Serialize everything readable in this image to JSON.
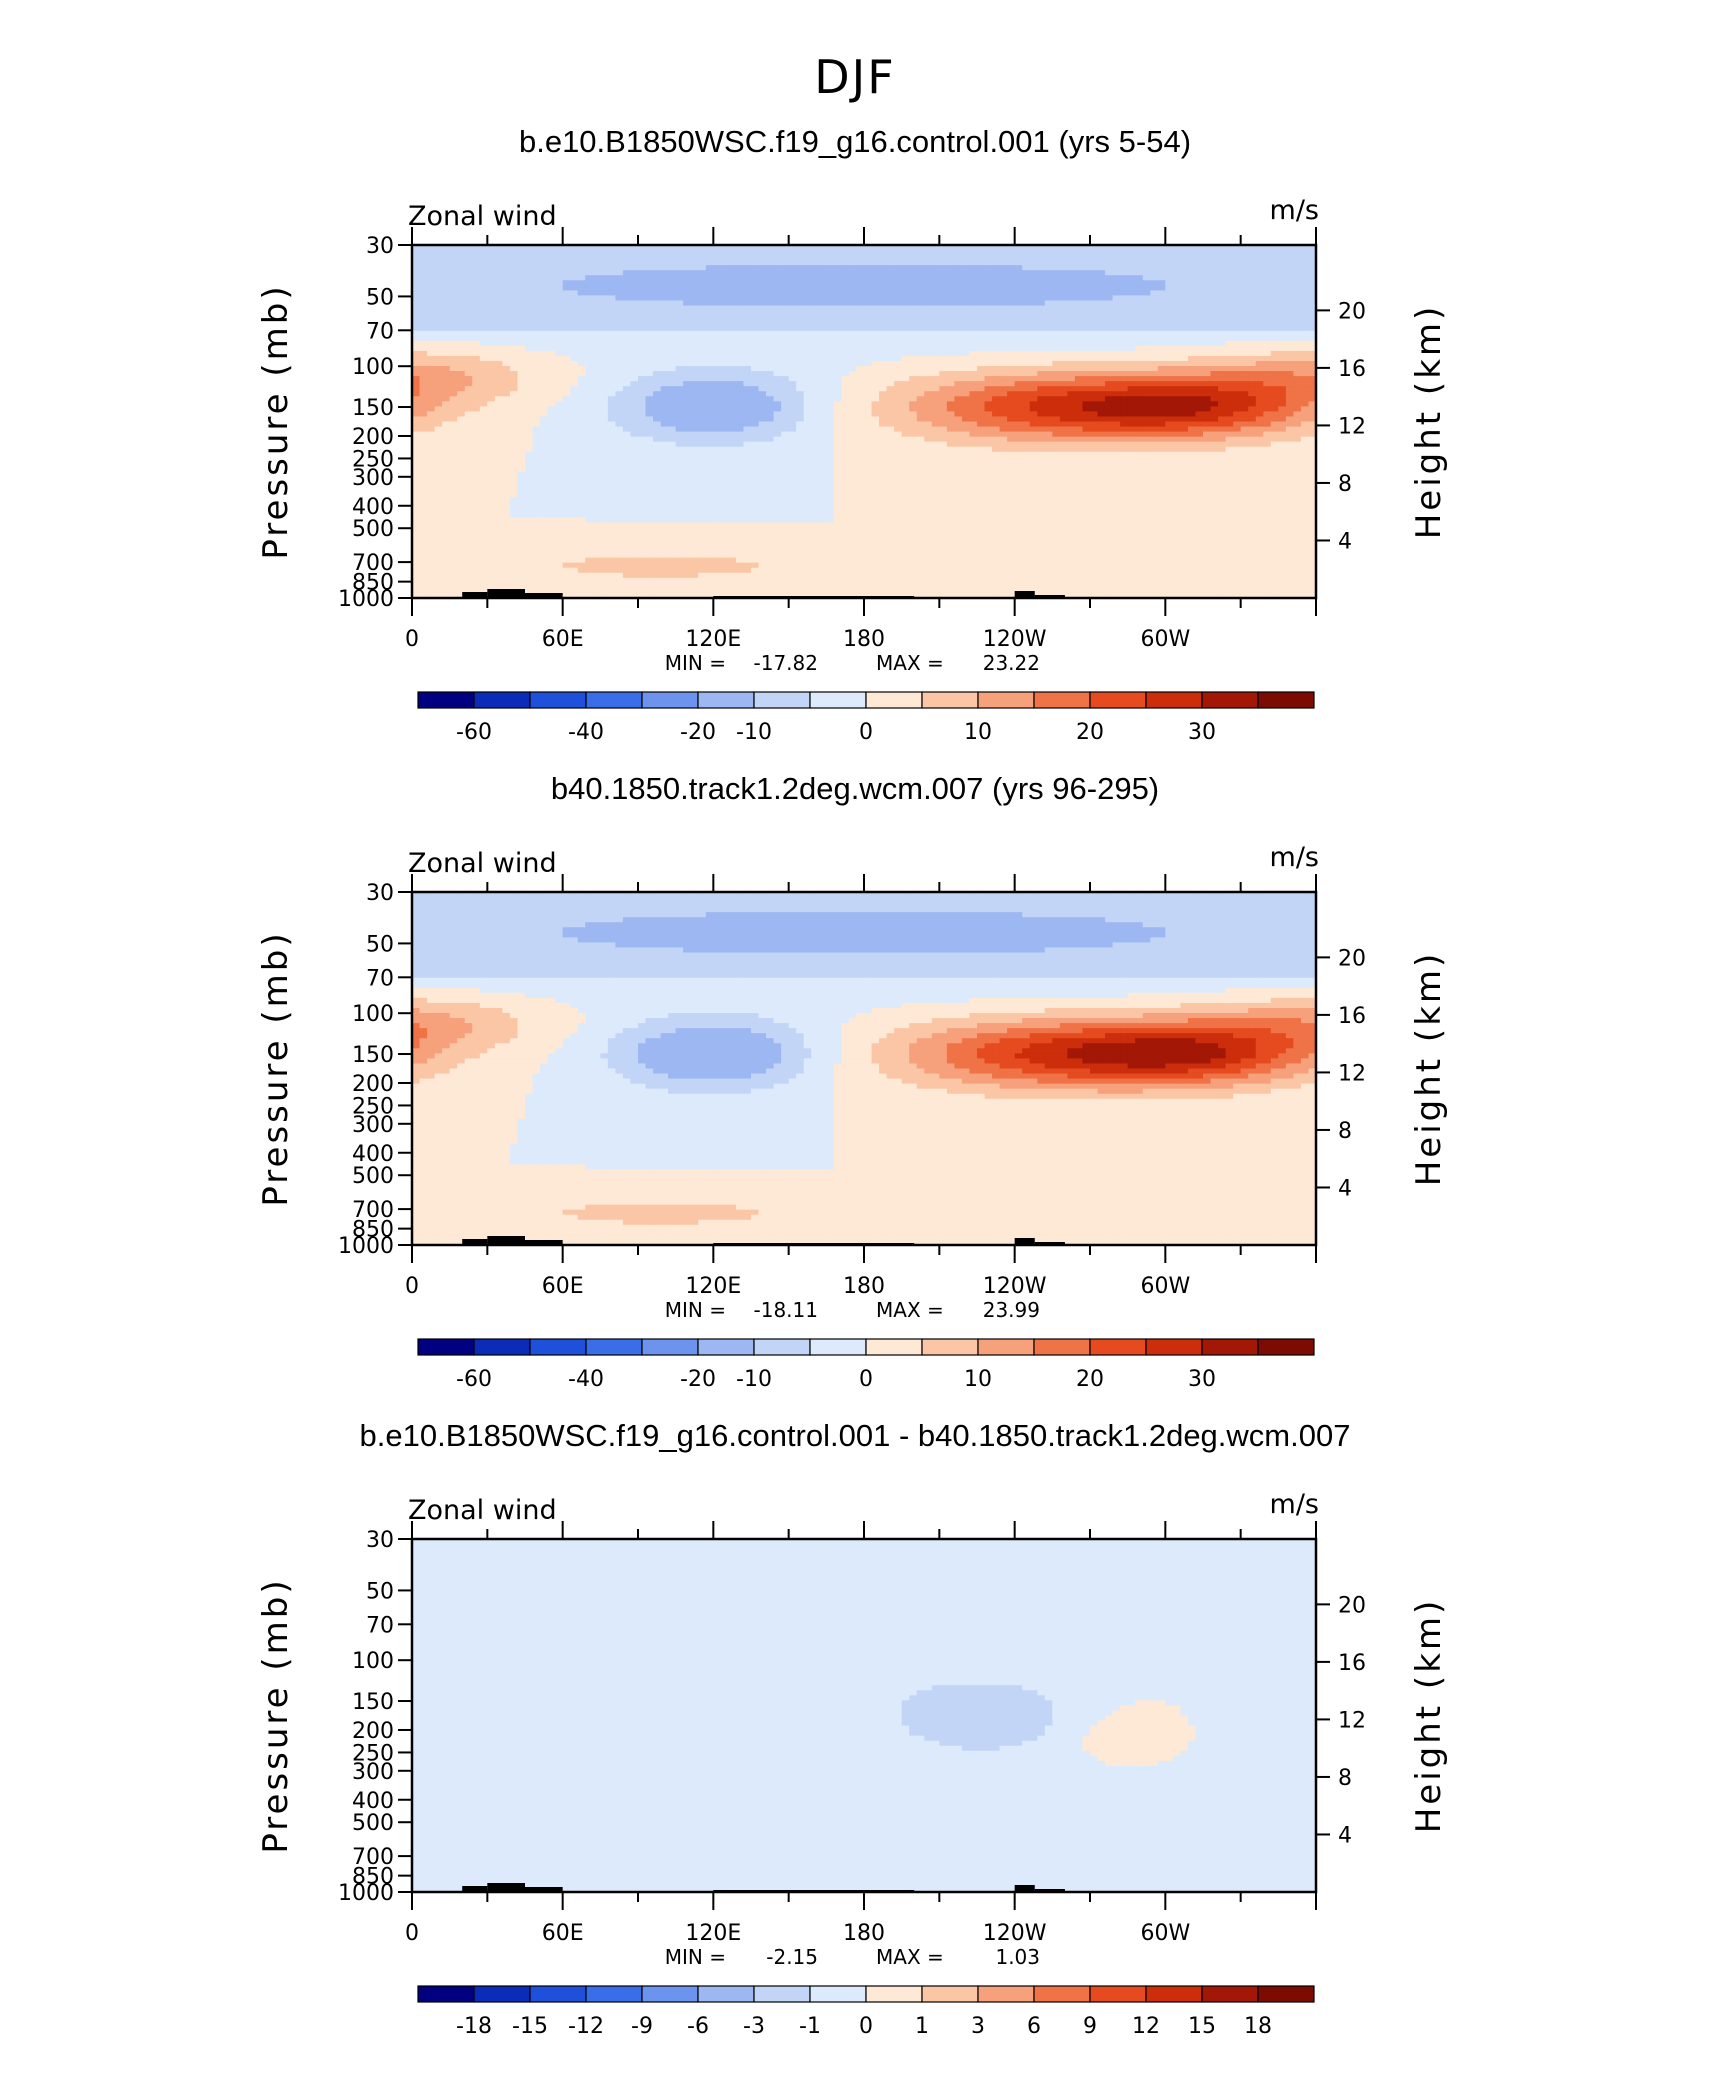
{
  "page_title": "DJF",
  "colors": {
    "levels_main": [
      "#000080",
      "#0a2cb8",
      "#1f50dc",
      "#3a6ee8",
      "#6c93ed",
      "#9cb7f2",
      "#c2d5f7",
      "#ddeafb",
      "#fde9d5",
      "#fbc6a5",
      "#f6a07c",
      "#ef7346",
      "#e54b1f",
      "#cc2d0b",
      "#a21706",
      "#7c0b04"
    ],
    "levels_diff": [
      "#000080",
      "#0a2cb8",
      "#1f50dc",
      "#3a6ee8",
      "#6c93ed",
      "#9cb7f2",
      "#c2d5f7",
      "#ddeafb",
      "#fde9d5",
      "#fbc6a5",
      "#f6a07c",
      "#ef7346",
      "#e54b1f",
      "#cc2d0b",
      "#a21706",
      "#7c0b04"
    ],
    "topography": "#000000"
  },
  "chart_data": [
    {
      "type": "heatmap",
      "title": "b.e10.B1850WSC.f19_g16.control.001 (yrs 5-54)",
      "variable": "Zonal wind",
      "units": "m/s",
      "ylabel": "Pressure (mb)",
      "ylabel_right": "Height (km)",
      "xticks": [
        "0",
        "60E",
        "120E",
        "180",
        "120W",
        "60W"
      ],
      "yticks": [
        "30",
        "50",
        "70",
        "100",
        "150",
        "200",
        "250",
        "300",
        "400",
        "500",
        "700",
        "850",
        "1000"
      ],
      "yticks_right": [
        "20",
        "16",
        "12",
        "8",
        "4"
      ],
      "ylim": [
        1000,
        30
      ],
      "log_y": true,
      "stats": {
        "min_label": "MIN =",
        "min": "-17.82",
        "max_label": "MAX =",
        "max": "23.22"
      },
      "colorbar_ticks": [
        "-60",
        "-40",
        "-20",
        "-10",
        "0",
        "10",
        "20",
        "30"
      ],
      "fields": [
        {
          "name": "stratosphere-easterly",
          "lon": 180,
          "p": 45,
          "lon_w": 200,
          "p_w": 0.35,
          "amp": -12
        },
        {
          "name": "westerly-jet-central",
          "lon": 256,
          "p": 150,
          "lon_w": 45,
          "p_w": 0.25,
          "amp": 23
        },
        {
          "name": "westerly-jet-east",
          "lon": 315,
          "p": 150,
          "lon_w": 35,
          "p_w": 0.22,
          "amp": 20
        },
        {
          "name": "westerly-jet-edge",
          "lon": 0,
          "p": 110,
          "lon_w": 35,
          "p_w": 0.2,
          "amp": 11
        },
        {
          "name": "easterly-core",
          "lon": 120,
          "p": 150,
          "lon_w": 28,
          "p_w": 0.25,
          "amp": -17
        },
        {
          "name": "low-level-westerly",
          "lon": 100,
          "p": 730,
          "lon_w": 40,
          "p_w": 0.1,
          "amp": 8
        }
      ]
    },
    {
      "type": "heatmap",
      "title": "b40.1850.track1.2deg.wcm.007 (yrs 96-295)",
      "variable": "Zonal wind",
      "units": "m/s",
      "ylabel": "Pressure (mb)",
      "ylabel_right": "Height (km)",
      "xticks": [
        "0",
        "60E",
        "120E",
        "180",
        "120W",
        "60W"
      ],
      "yticks": [
        "30",
        "50",
        "70",
        "100",
        "150",
        "200",
        "250",
        "300",
        "400",
        "500",
        "700",
        "850",
        "1000"
      ],
      "yticks_right": [
        "20",
        "16",
        "12",
        "8",
        "4"
      ],
      "ylim": [
        1000,
        30
      ],
      "log_y": true,
      "stats": {
        "min_label": "MIN =",
        "min": "-18.11",
        "max_label": "MAX =",
        "max": "23.99"
      },
      "colorbar_ticks": [
        "-60",
        "-40",
        "-20",
        "-10",
        "0",
        "10",
        "20",
        "30"
      ],
      "fields": [
        {
          "name": "stratosphere-easterly",
          "lon": 180,
          "p": 45,
          "lon_w": 200,
          "p_w": 0.35,
          "amp": -12
        },
        {
          "name": "westerly-jet-central",
          "lon": 256,
          "p": 150,
          "lon_w": 45,
          "p_w": 0.25,
          "amp": 24
        },
        {
          "name": "westerly-jet-east",
          "lon": 315,
          "p": 150,
          "lon_w": 35,
          "p_w": 0.22,
          "amp": 21
        },
        {
          "name": "westerly-jet-edge",
          "lon": 0,
          "p": 110,
          "lon_w": 35,
          "p_w": 0.2,
          "amp": 11
        },
        {
          "name": "easterly-core",
          "lon": 120,
          "p": 150,
          "lon_w": 28,
          "p_w": 0.25,
          "amp": -18
        },
        {
          "name": "low-level-westerly",
          "lon": 100,
          "p": 730,
          "lon_w": 40,
          "p_w": 0.1,
          "amp": 8
        }
      ]
    },
    {
      "type": "heatmap",
      "title": "b.e10.B1850WSC.f19_g16.control.001 - b40.1850.track1.2deg.wcm.007",
      "variable": "Zonal wind",
      "units": "m/s",
      "ylabel": "Pressure (mb)",
      "ylabel_right": "Height (km)",
      "xticks": [
        "0",
        "60E",
        "120E",
        "180",
        "120W",
        "60W"
      ],
      "yticks": [
        "30",
        "50",
        "70",
        "100",
        "150",
        "200",
        "250",
        "300",
        "400",
        "500",
        "700",
        "850",
        "1000"
      ],
      "yticks_right": [
        "20",
        "16",
        "12",
        "8",
        "4"
      ],
      "ylim": [
        1000,
        30
      ],
      "log_y": true,
      "stats": {
        "min_label": "MIN =",
        "min": "-2.15",
        "max_label": "MAX =",
        "max": "1.03"
      },
      "colorbar_ticks": [
        "-18",
        "-15",
        "-12",
        "-9",
        "-6",
        "-3",
        "-1",
        "0",
        "1",
        "3",
        "6",
        "9",
        "12",
        "15",
        "18"
      ],
      "fields": [
        {
          "name": "negative-core",
          "lon": 225,
          "p": 170,
          "lon_w": 25,
          "p_w": 0.25,
          "amp": -2.1
        },
        {
          "name": "negative-band-west",
          "lon": 40,
          "p": 200,
          "lon_w": 40,
          "p_w": 0.35,
          "amp": -0.9
        },
        {
          "name": "negative-band-east",
          "lon": 260,
          "p": 400,
          "lon_w": 60,
          "p_w": 0.35,
          "amp": -0.8
        },
        {
          "name": "positive-east",
          "lon": 285,
          "p": 230,
          "lon_w": 15,
          "p_w": 0.2,
          "amp": 0.9
        }
      ]
    }
  ]
}
